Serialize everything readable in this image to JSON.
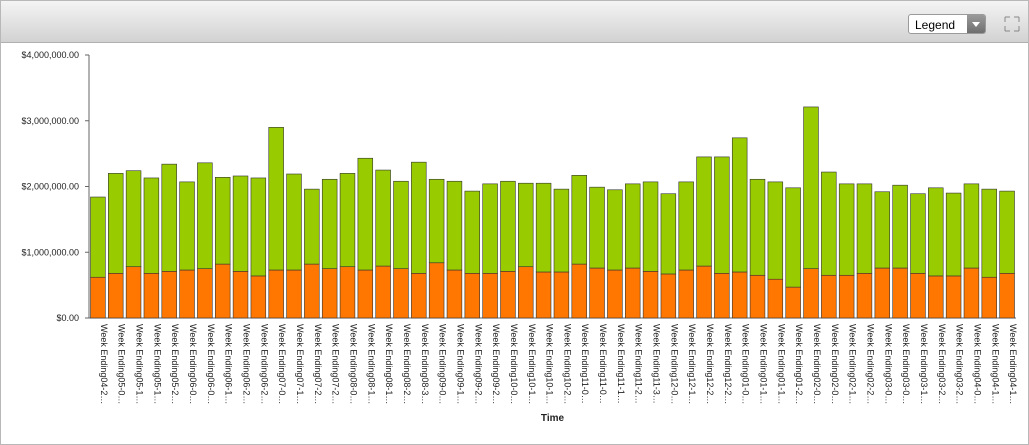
{
  "toolbar": {
    "legend_button": "Legend"
  },
  "chart_data": {
    "type": "stacked-bar",
    "x_label": "Time",
    "categories": [
      "Week Ending04-2…",
      "Week Ending05-0…",
      "Week Ending05-1…",
      "Week Ending05-1…",
      "Week Ending05-2…",
      "Week Ending06-0…",
      "Week Ending06-0…",
      "Week Ending06-1…",
      "Week Ending06-2…",
      "Week Ending06-2…",
      "Week Ending07-0…",
      "Week Ending07-1…",
      "Week Ending07-2…",
      "Week Ending07-2…",
      "Week Ending08-0…",
      "Week Ending08-1…",
      "Week Ending08-1…",
      "Week Ending08-2…",
      "Week Ending08-3…",
      "Week Ending09-0…",
      "Week Ending09-1…",
      "Week Ending09-2…",
      "Week Ending09-2…",
      "Week Ending10-0…",
      "Week Ending10-1…",
      "Week Ending10-1…",
      "Week Ending10-2…",
      "Week Ending11-0…",
      "Week Ending11-0…",
      "Week Ending11-1…",
      "Week Ending11-2…",
      "Week Ending11-3…",
      "Week Ending12-0…",
      "Week Ending12-1…",
      "Week Ending12-2…",
      "Week Ending12-2…",
      "Week Ending01-0…",
      "Week Ending01-1…",
      "Week Ending01-1…",
      "Week Ending01-2…",
      "Week Ending02-0…",
      "Week Ending02-0…",
      "Week Ending02-1…",
      "Week Ending02-2…",
      "Week Ending03-0…",
      "Week Ending03-0…",
      "Week Ending03-1…",
      "Week Ending03-2…",
      "Week Ending03-2…",
      "Week Ending04-0…",
      "Week Ending04-1…",
      "Week Ending04-1…"
    ],
    "series": [
      {
        "color": "#ff7700",
        "values": [
          620000,
          680000,
          780000,
          680000,
          710000,
          730000,
          750000,
          820000,
          710000,
          640000,
          730000,
          730000,
          820000,
          750000,
          780000,
          730000,
          790000,
          750000,
          680000,
          840000,
          730000,
          680000,
          680000,
          710000,
          780000,
          700000,
          700000,
          820000,
          760000,
          730000,
          760000,
          710000,
          670000,
          730000,
          790000,
          680000,
          700000,
          650000,
          590000,
          470000,
          750000,
          650000,
          650000,
          680000,
          760000,
          760000,
          680000,
          640000,
          640000,
          760000,
          620000,
          680000
        ]
      },
      {
        "color": "#99cc00",
        "values": [
          1220000,
          1520000,
          1460000,
          1450000,
          1630000,
          1340000,
          1610000,
          1320000,
          1450000,
          1490000,
          2170000,
          1460000,
          1140000,
          1360000,
          1420000,
          1700000,
          1460000,
          1330000,
          1690000,
          1270000,
          1350000,
          1250000,
          1360000,
          1370000,
          1270000,
          1350000,
          1260000,
          1350000,
          1230000,
          1220000,
          1280000,
          1360000,
          1220000,
          1340000,
          1660000,
          1770000,
          2040000,
          1460000,
          1480000,
          1510000,
          2460000,
          1570000,
          1390000,
          1360000,
          1160000,
          1260000,
          1210000,
          1340000,
          1260000,
          1280000,
          1340000,
          1250000
        ]
      }
    ],
    "ylim": [
      0,
      4000000
    ],
    "yticks": [
      {
        "value": 0,
        "label": "$0.00"
      },
      {
        "value": 1000000,
        "label": "$1,000,000.00"
      },
      {
        "value": 2000000,
        "label": "$2,000,000.00"
      },
      {
        "value": 3000000,
        "label": "$3,000,000.00"
      },
      {
        "value": 4000000,
        "label": "$4,000,000.00"
      }
    ]
  }
}
